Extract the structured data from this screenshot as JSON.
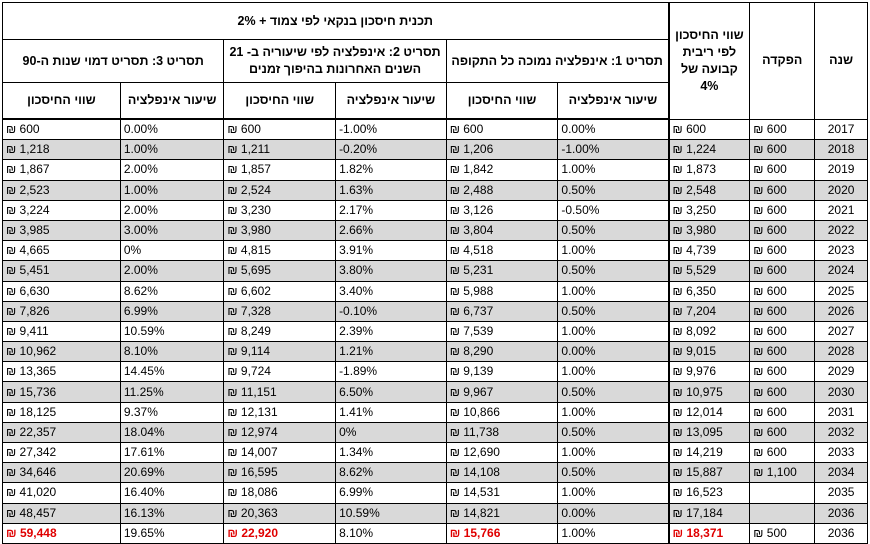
{
  "headers": {
    "year": "שנה",
    "deposit": "הפקדה",
    "fixed_value": "שווי החיסכון לפי ריבית קבועה של 4%",
    "plan_title": "תכנית חיסכון בנקאי לפי צמוד + 2%",
    "scenario1": "תסריט 1: אינפלציה נמוכה כל התקופה",
    "scenario2": "תסריט 2: אינפלציה לפי שיעוריה ב- 21 השנים האחרונות בהיפוך זמנים",
    "scenario3": "תסריט 3: תסריט דמוי שנות ה-90",
    "inflation_rate": "שיעור אינפלציה",
    "savings_value": "שווי החיסכון"
  },
  "rows": [
    {
      "year": "2017",
      "deposit": "₪ 600",
      "fixed": "₪ 600",
      "s1_rate": "0.00%",
      "s1_val": "₪ 600",
      "s2_rate": "-1.00%",
      "s2_val": "₪ 600",
      "s3_rate": "0.00%",
      "s3_val": "₪ 600"
    },
    {
      "year": "2018",
      "deposit": "₪ 600",
      "fixed": "₪ 1,224",
      "s1_rate": "-1.00%",
      "s1_val": "₪ 1,206",
      "s2_rate": "-0.20%",
      "s2_val": "₪ 1,211",
      "s3_rate": "1.00%",
      "s3_val": "₪ 1,218"
    },
    {
      "year": "2019",
      "deposit": "₪ 600",
      "fixed": "₪ 1,873",
      "s1_rate": "1.00%",
      "s1_val": "₪ 1,842",
      "s2_rate": "1.82%",
      "s2_val": "₪ 1,857",
      "s3_rate": "2.00%",
      "s3_val": "₪ 1,867"
    },
    {
      "year": "2020",
      "deposit": "₪ 600",
      "fixed": "₪ 2,548",
      "s1_rate": "0.50%",
      "s1_val": "₪ 2,488",
      "s2_rate": "1.63%",
      "s2_val": "₪ 2,524",
      "s3_rate": "1.00%",
      "s3_val": "₪ 2,523"
    },
    {
      "year": "2021",
      "deposit": "₪ 600",
      "fixed": "₪ 3,250",
      "s1_rate": "-0.50%",
      "s1_val": "₪ 3,126",
      "s2_rate": "2.17%",
      "s2_val": "₪ 3,230",
      "s3_rate": "2.00%",
      "s3_val": "₪ 3,224"
    },
    {
      "year": "2022",
      "deposit": "₪ 600",
      "fixed": "₪ 3,980",
      "s1_rate": "0.50%",
      "s1_val": "₪ 3,804",
      "s2_rate": "2.66%",
      "s2_val": "₪ 3,980",
      "s3_rate": "3.00%",
      "s3_val": "₪ 3,985"
    },
    {
      "year": "2023",
      "deposit": "₪ 600",
      "fixed": "₪ 4,739",
      "s1_rate": "1.00%",
      "s1_val": "₪ 4,518",
      "s2_rate": "3.91%",
      "s2_val": "₪ 4,815",
      "s3_rate": "0%",
      "s3_val": "₪ 4,665"
    },
    {
      "year": "2024",
      "deposit": "₪ 600",
      "fixed": "₪ 5,529",
      "s1_rate": "0.50%",
      "s1_val": "₪ 5,231",
      "s2_rate": "3.80%",
      "s2_val": "₪ 5,695",
      "s3_rate": "2.00%",
      "s3_val": "₪ 5,451"
    },
    {
      "year": "2025",
      "deposit": "₪ 600",
      "fixed": "₪ 6,350",
      "s1_rate": "1.00%",
      "s1_val": "₪ 5,988",
      "s2_rate": "3.40%",
      "s2_val": "₪ 6,602",
      "s3_rate": "8.62%",
      "s3_val": "₪ 6,630"
    },
    {
      "year": "2026",
      "deposit": "₪ 600",
      "fixed": "₪ 7,204",
      "s1_rate": "0.50%",
      "s1_val": "₪ 6,737",
      "s2_rate": "-0.10%",
      "s2_val": "₪ 7,328",
      "s3_rate": "6.99%",
      "s3_val": "₪ 7,826"
    },
    {
      "year": "2027",
      "deposit": "₪ 600",
      "fixed": "₪ 8,092",
      "s1_rate": "1.00%",
      "s1_val": "₪ 7,539",
      "s2_rate": "2.39%",
      "s2_val": "₪ 8,249",
      "s3_rate": "10.59%",
      "s3_val": "₪ 9,411"
    },
    {
      "year": "2028",
      "deposit": "₪ 600",
      "fixed": "₪ 9,015",
      "s1_rate": "0.00%",
      "s1_val": "₪ 8,290",
      "s2_rate": "1.21%",
      "s2_val": "₪ 9,114",
      "s3_rate": "8.10%",
      "s3_val": "₪ 10,962"
    },
    {
      "year": "2029",
      "deposit": "₪ 600",
      "fixed": "₪ 9,976",
      "s1_rate": "1.00%",
      "s1_val": "₪ 9,139",
      "s2_rate": "-1.89%",
      "s2_val": "₪ 9,724",
      "s3_rate": "14.45%",
      "s3_val": "₪ 13,365"
    },
    {
      "year": "2030",
      "deposit": "₪ 600",
      "fixed": "₪ 10,975",
      "s1_rate": "0.50%",
      "s1_val": "₪ 9,967",
      "s2_rate": "6.50%",
      "s2_val": "₪ 11,151",
      "s3_rate": "11.25%",
      "s3_val": "₪ 15,736"
    },
    {
      "year": "2031",
      "deposit": "₪ 600",
      "fixed": "₪ 12,014",
      "s1_rate": "1.00%",
      "s1_val": "₪ 10,866",
      "s2_rate": "1.41%",
      "s2_val": "₪ 12,131",
      "s3_rate": "9.37%",
      "s3_val": "₪ 18,125"
    },
    {
      "year": "2032",
      "deposit": "₪ 600",
      "fixed": "₪ 13,095",
      "s1_rate": "0.50%",
      "s1_val": "₪ 11,738",
      "s2_rate": "0%",
      "s2_val": "₪ 12,974",
      "s3_rate": "18.04%",
      "s3_val": "₪ 22,357"
    },
    {
      "year": "2033",
      "deposit": "₪ 600",
      "fixed": "₪ 14,219",
      "s1_rate": "1.00%",
      "s1_val": "₪ 12,690",
      "s2_rate": "1.34%",
      "s2_val": "₪ 14,007",
      "s3_rate": "17.61%",
      "s3_val": "₪ 27,342"
    },
    {
      "year": "2034",
      "deposit": "₪ 1,100",
      "fixed": "₪ 15,887",
      "s1_rate": "0.50%",
      "s1_val": "₪ 14,108",
      "s2_rate": "8.62%",
      "s2_val": "₪ 16,595",
      "s3_rate": "20.69%",
      "s3_val": "₪ 34,646"
    },
    {
      "year": "2035",
      "deposit": "",
      "fixed": "₪ 16,523",
      "s1_rate": "1.00%",
      "s1_val": "₪ 14,531",
      "s2_rate": "6.99%",
      "s2_val": "₪ 18,086",
      "s3_rate": "16.40%",
      "s3_val": "₪ 41,020"
    },
    {
      "year": "2036",
      "deposit": "",
      "fixed": "₪ 17,184",
      "s1_rate": "0.00%",
      "s1_val": "₪ 14,821",
      "s2_rate": "10.59%",
      "s2_val": "₪ 20,363",
      "s3_rate": "16.13%",
      "s3_val": "₪ 48,457"
    }
  ],
  "final": {
    "year": "2036",
    "deposit": "₪ 500",
    "fixed": "₪ 18,371",
    "s1_rate": "1.00%",
    "s1_val": "₪ 15,766",
    "s2_rate": "8.10%",
    "s2_val": "₪ 22,920",
    "s3_rate": "19.65%",
    "s3_val": "₪ 59,448"
  }
}
